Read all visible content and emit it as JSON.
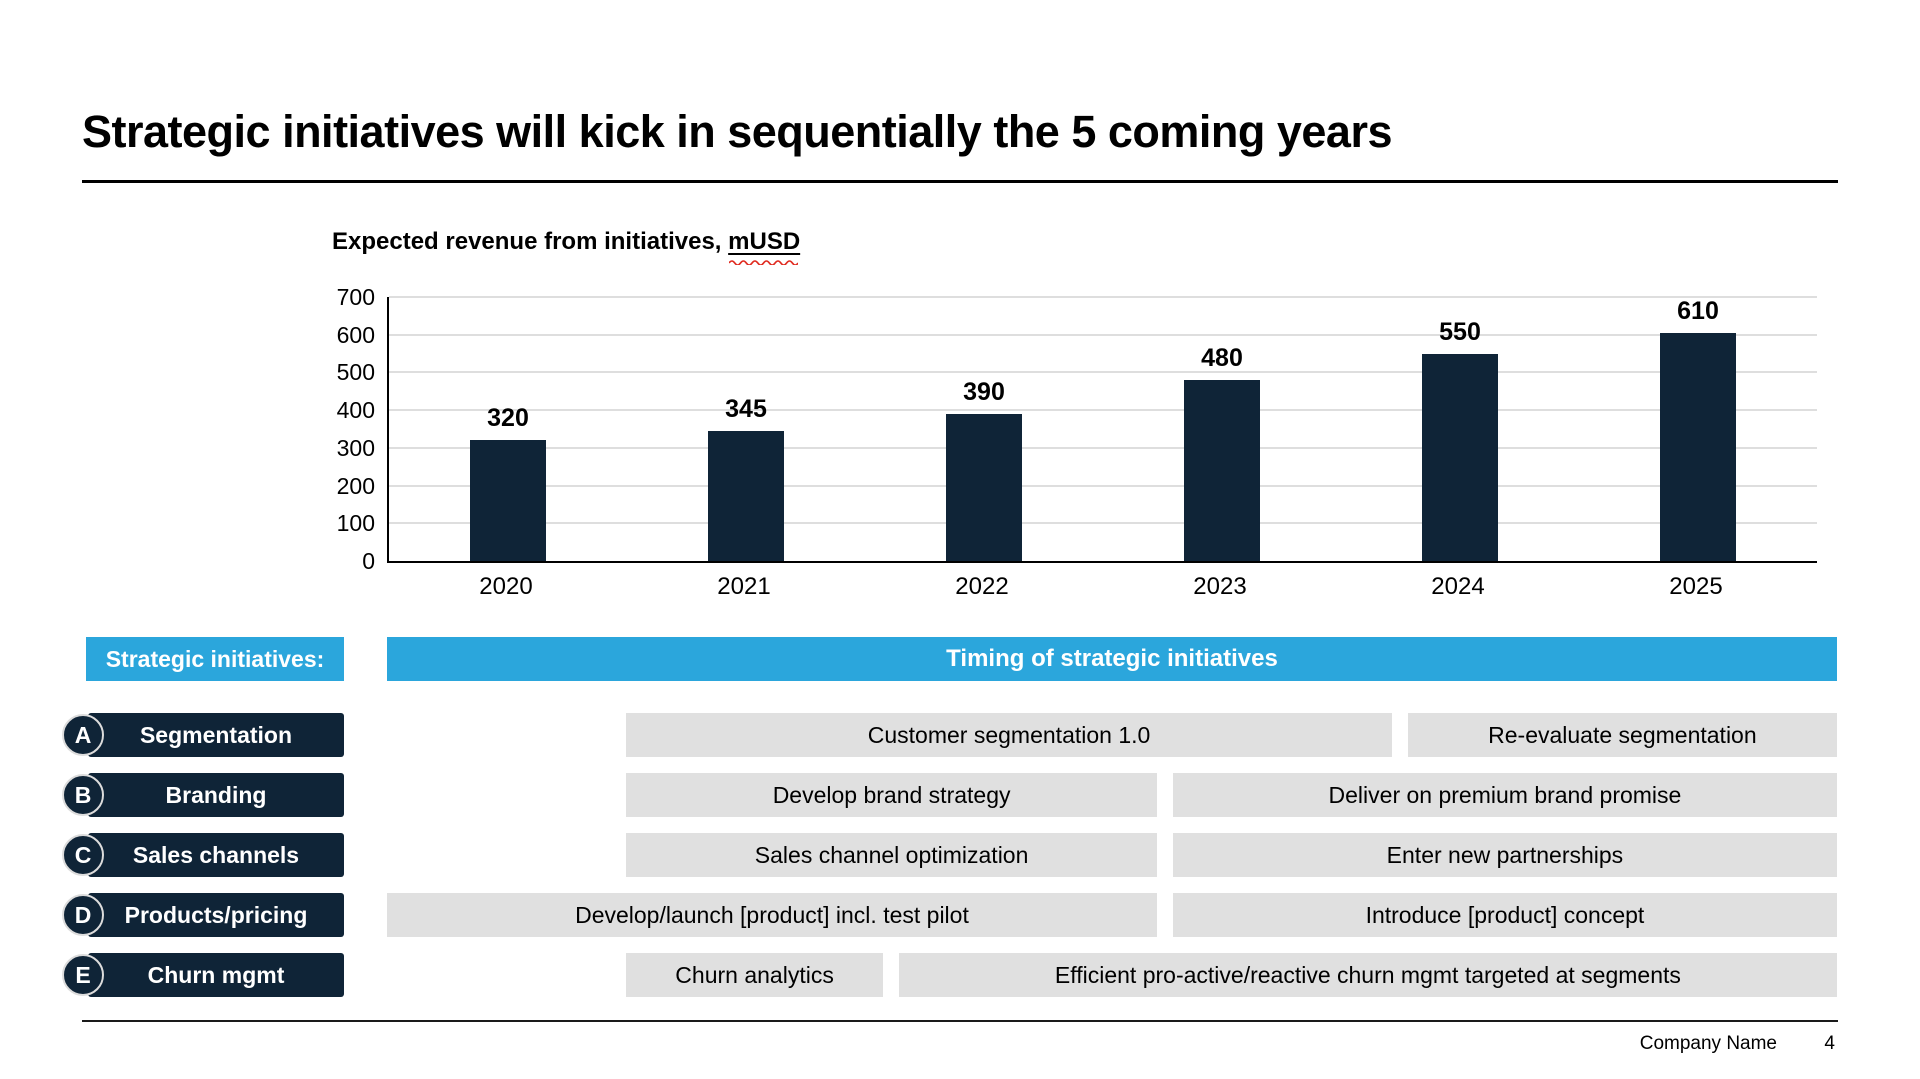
{
  "slide": {
    "title": "Strategic initiatives will kick in sequentially the 5 coming years"
  },
  "chart": {
    "title_prefix": "Expected revenue from initiatives, ",
    "title_unit": "mUSD"
  },
  "chart_data": {
    "type": "bar",
    "title": "Expected revenue from initiatives, mUSD",
    "categories": [
      "2020",
      "2021",
      "2022",
      "2023",
      "2024",
      "2025"
    ],
    "values": [
      320,
      345,
      390,
      480,
      550,
      610
    ],
    "xlabel": "",
    "ylabel": "",
    "ylim": [
      0,
      700
    ],
    "yticks": [
      0,
      100,
      200,
      300,
      400,
      500,
      600,
      700
    ],
    "grid": true,
    "data_labels": true,
    "legend": false
  },
  "timing": {
    "left_header": "Strategic initiatives:",
    "header": "Timing of strategic initiatives",
    "rows": [
      {
        "letter": "A",
        "label": "Segmentation",
        "bars": [
          {
            "text": "Customer segmentation 1.0",
            "left_pct": 16.5,
            "width_pct": 52.8
          },
          {
            "text": "Re-evaluate segmentation",
            "left_pct": 70.4,
            "width_pct": 29.6
          }
        ]
      },
      {
        "letter": "B",
        "label": "Branding",
        "bars": [
          {
            "text": "Develop brand strategy",
            "left_pct": 16.5,
            "width_pct": 36.6
          },
          {
            "text": "Deliver on premium brand promise",
            "left_pct": 54.2,
            "width_pct": 45.8
          }
        ]
      },
      {
        "letter": "C",
        "label": "Sales channels",
        "bars": [
          {
            "text": "Sales channel optimization",
            "left_pct": 16.5,
            "width_pct": 36.6
          },
          {
            "text": "Enter new partnerships",
            "left_pct": 54.2,
            "width_pct": 45.8
          }
        ]
      },
      {
        "letter": "D",
        "label": "Products/pricing",
        "bars": [
          {
            "text": "Develop/launch [product] incl. test pilot",
            "left_pct": 0,
            "width_pct": 53.1
          },
          {
            "text": "Introduce [product] concept",
            "left_pct": 54.2,
            "width_pct": 45.8
          }
        ]
      },
      {
        "letter": "E",
        "label": "Churn mgmt",
        "bars": [
          {
            "text": "Churn analytics",
            "left_pct": 16.5,
            "width_pct": 17.7
          },
          {
            "text": "Efficient pro-active/reactive churn mgmt targeted at segments",
            "left_pct": 35.3,
            "width_pct": 64.7
          }
        ]
      }
    ]
  },
  "footer": {
    "company": "Company Name",
    "page": "4"
  },
  "colors": {
    "navy": "#0F2437",
    "blue": "#2BA6DC",
    "bar_gray": "#E0E0E0",
    "gridline": "#DEDEDE",
    "squiggle_red": "#E02B20"
  }
}
